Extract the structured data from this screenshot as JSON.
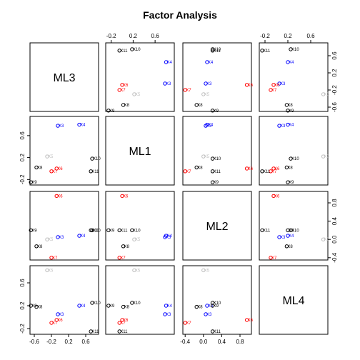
{
  "chart_data": {
    "type": "scatter",
    "title": "Factor Analysis",
    "variables": [
      "ML3",
      "ML1",
      "ML2",
      "ML4"
    ],
    "limits": {
      "ML3": [
        -0.7,
        0.9
      ],
      "ML1": [
        -0.3,
        0.95
      ],
      "ML2": [
        -0.45,
        1.05
      ],
      "ML4": [
        -0.3,
        0.9
      ]
    },
    "tick_labels": {
      "ML3": [
        "-0.6",
        "-0.2",
        "0.2",
        "0.6"
      ],
      "ML1": [
        "-0.2",
        "0.2",
        "0.6"
      ],
      "ML2": [
        "-0.4",
        "0.0",
        "0.4",
        "0.8"
      ],
      "ML4": [
        "-0.2",
        "0.2",
        "0.6"
      ]
    },
    "axes_placement": {
      "top": [
        "ML1",
        "ML4"
      ],
      "bottom": [
        "ML3",
        "ML2"
      ],
      "left": [
        "ML1",
        "ML4"
      ],
      "right": [
        "ML3",
        "ML2"
      ]
    },
    "colors": {
      "black": "#000000",
      "red": "#ff0000",
      "blue": "#0000ff",
      "gray": "#bebebe"
    },
    "points": [
      {
        "label": "X3",
        "color": "blue",
        "ML3": -0.05,
        "ML1": 0.78,
        "ML2": 0.05,
        "ML4": 0.05
      },
      {
        "label": "X4",
        "color": "blue",
        "ML3": 0.45,
        "ML1": 0.8,
        "ML2": 0.08,
        "ML4": 0.2
      },
      {
        "label": "X5",
        "color": "gray",
        "ML3": -0.3,
        "ML1": 0.22,
        "ML2": 0.0,
        "ML4": 0.82
      },
      {
        "label": "X6",
        "color": "red",
        "ML3": -0.08,
        "ML1": 0.0,
        "ML2": 0.95,
        "ML4": -0.05
      },
      {
        "label": "X7",
        "color": "red",
        "ML3": -0.2,
        "ML1": -0.05,
        "ML2": -0.4,
        "ML4": -0.1
      },
      {
        "label": "X8",
        "color": "black",
        "ML3": -0.55,
        "ML1": 0.02,
        "ML2": -0.15,
        "ML4": 0.18
      },
      {
        "label": "X9",
        "color": "black",
        "ML3": -0.68,
        "ML1": -0.25,
        "ML2": 0.2,
        "ML4": 0.2
      },
      {
        "label": "X10",
        "color": "black",
        "ML3": 0.75,
        "ML1": 0.18,
        "ML2": 0.2,
        "ML4": 0.25
      },
      {
        "label": "X11",
        "color": "black",
        "ML3": 0.72,
        "ML1": -0.05,
        "ML2": 0.2,
        "ML4": -0.25
      }
    ]
  }
}
